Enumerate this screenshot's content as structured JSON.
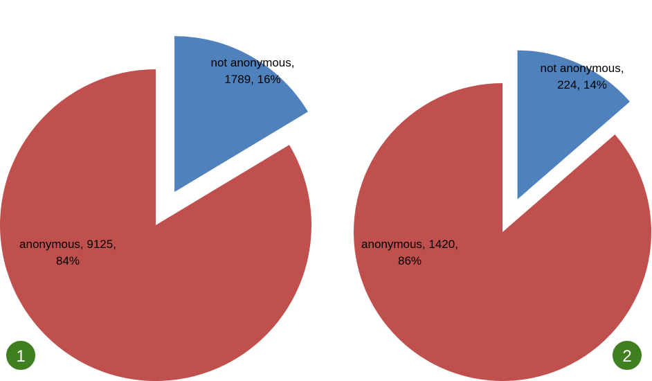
{
  "chart_data": [
    {
      "type": "pie",
      "badge": "1",
      "slices": [
        {
          "label_lines": [
            "not anonymous,",
            "1789, 16%"
          ],
          "name": "not anonymous",
          "value": 1789,
          "percent": 16,
          "color": "#4f81bd",
          "exploded": true
        },
        {
          "label_lines": [
            "anonymous, 9125,",
            "84%"
          ],
          "name": "anonymous",
          "value": 9125,
          "percent": 84,
          "color": "#c0504d",
          "exploded": false
        }
      ]
    },
    {
      "type": "pie",
      "badge": "2",
      "slices": [
        {
          "label_lines": [
            "not anonymous,",
            "224, 14%"
          ],
          "name": "not anonymous",
          "value": 224,
          "percent": 14,
          "color": "#4f81bd",
          "exploded": true
        },
        {
          "label_lines": [
            "anonymous, 1420,",
            "86%"
          ],
          "name": "anonymous",
          "value": 1420,
          "percent": 86,
          "color": "#c0504d",
          "exploded": false
        }
      ]
    }
  ],
  "badge_color": "#3f7f1f"
}
